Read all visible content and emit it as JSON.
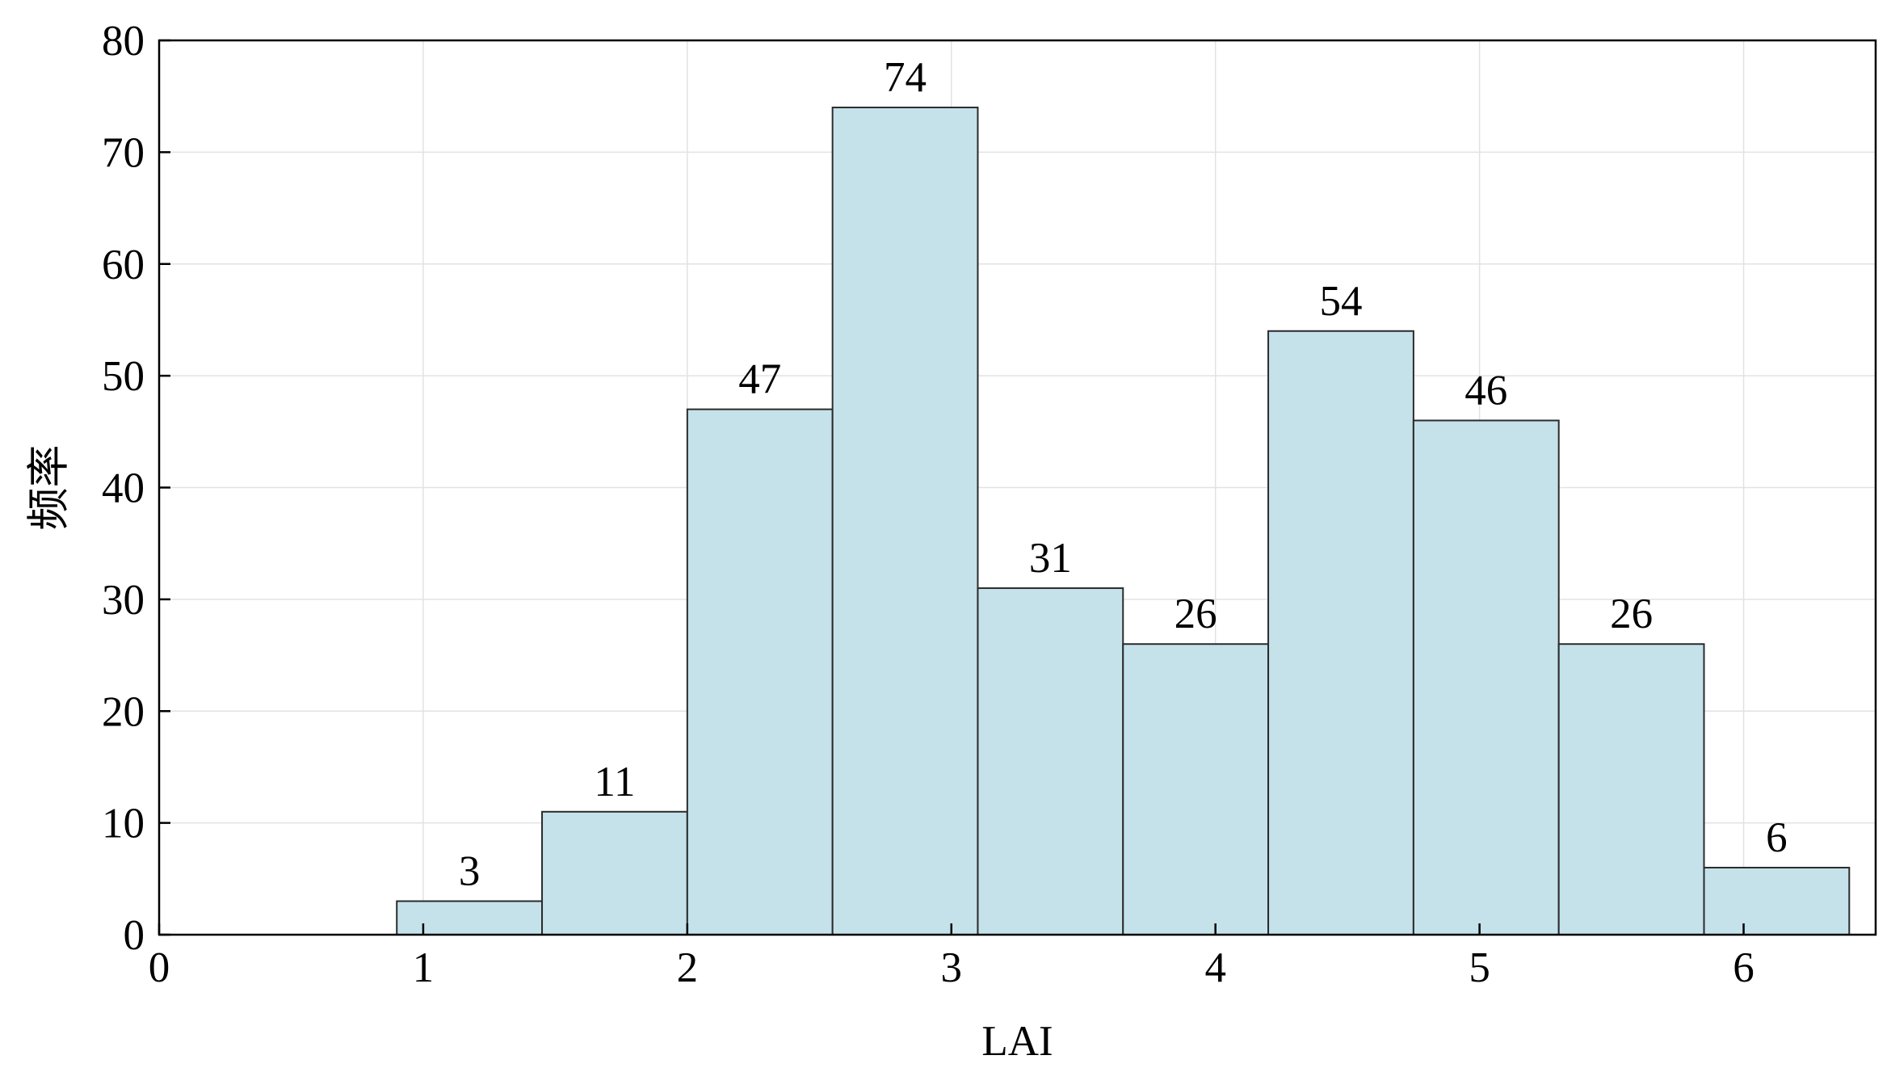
{
  "chart_data": {
    "type": "histogram",
    "title": "",
    "xlabel": "LAI",
    "ylabel": "频率",
    "xlim": [
      0,
      6.5
    ],
    "ylim": [
      0,
      80
    ],
    "xticks": [
      0,
      1,
      2,
      3,
      4,
      5,
      6
    ],
    "yticks": [
      0,
      10,
      20,
      30,
      40,
      50,
      60,
      70,
      80
    ],
    "grid": true,
    "bin_edges": [
      0.9,
      1.45,
      2.0,
      2.55,
      3.1,
      3.65,
      4.2,
      4.75,
      5.3,
      5.85,
      6.4
    ],
    "values": [
      3,
      11,
      47,
      74,
      31,
      26,
      54,
      46,
      26,
      6
    ],
    "bar_labels": [
      "3",
      "11",
      "47",
      "74",
      "31",
      "26",
      "54",
      "46",
      "26",
      "6"
    ],
    "colors": {
      "bar_fill": "#c5e2eb",
      "bar_edge": "#2b2b2b",
      "grid": "#e2e2e2",
      "axis": "#000000"
    }
  }
}
